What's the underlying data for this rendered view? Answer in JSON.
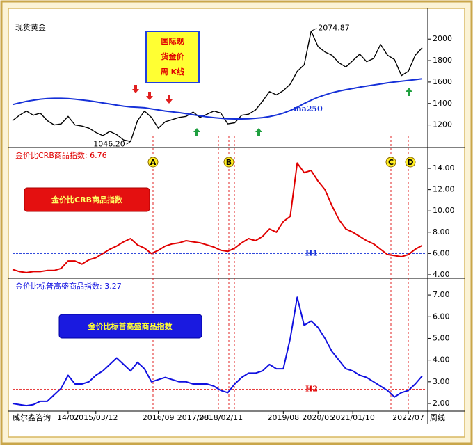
{
  "chart_data": [
    {
      "type": "line",
      "title": "现货黄金",
      "box_lines": [
        "国际现",
        "货金价",
        "周 K线"
      ],
      "ylim": [
        990,
        2170
      ],
      "yticks": [
        1200,
        1400,
        1600,
        1800,
        2000
      ],
      "max_label": "2074.87",
      "min_label": "1046.20",
      "series": [
        {
          "color": "#000000",
          "values": [
            1240,
            1290,
            1330,
            1290,
            1310,
            1240,
            1200,
            1210,
            1280,
            1200,
            1190,
            1170,
            1130,
            1100,
            1140,
            1110,
            1060,
            1046.2,
            1240,
            1330,
            1270,
            1170,
            1230,
            1250,
            1270,
            1280,
            1320,
            1270,
            1300,
            1330,
            1310,
            1210,
            1220,
            1290,
            1300,
            1340,
            1420,
            1510,
            1480,
            1520,
            1580,
            1700,
            1760,
            2074.87,
            1930,
            1880,
            1850,
            1780,
            1740,
            1800,
            1860,
            1790,
            1820,
            1950,
            1850,
            1810,
            1660,
            1700,
            1850,
            1920
          ]
        },
        {
          "name": "ma250",
          "color": "#1530d8",
          "values": [
            1390,
            1405,
            1420,
            1430,
            1440,
            1445,
            1448,
            1448,
            1445,
            1440,
            1432,
            1425,
            1415,
            1405,
            1395,
            1385,
            1375,
            1368,
            1365,
            1360,
            1350,
            1340,
            1330,
            1322,
            1315,
            1305,
            1295,
            1285,
            1275,
            1268,
            1262,
            1258,
            1256,
            1256,
            1258,
            1262,
            1268,
            1278,
            1292,
            1310,
            1335,
            1365,
            1400,
            1430,
            1458,
            1480,
            1500,
            1515,
            1528,
            1540,
            1552,
            1562,
            1572,
            1582,
            1592,
            1600,
            1608,
            1615,
            1622,
            1630
          ]
        }
      ],
      "markers": [
        "A",
        "B",
        "C",
        "D"
      ]
    },
    {
      "type": "line",
      "title": "金价比CRB商品指数: 6.76",
      "box": "金价比CRB商品指数",
      "ylim": [
        3.67,
        15.9
      ],
      "yticks": [
        {
          "value": 4,
          "label": "4.00"
        },
        {
          "value": 6,
          "label": "6.00"
        },
        {
          "value": 8,
          "label": "8.00"
        },
        {
          "value": 10,
          "label": "10.00"
        },
        {
          "value": 12,
          "label": "12.00"
        },
        {
          "value": 14,
          "label": "14.00"
        }
      ],
      "reference": {
        "label": "H1",
        "value": 6,
        "color": "#1530d8"
      },
      "series": [
        {
          "color": "#e00000",
          "values": [
            4.5,
            4.3,
            4.2,
            4.3,
            4.3,
            4.4,
            4.4,
            4.6,
            5.3,
            5.3,
            5.0,
            5.4,
            5.6,
            6.0,
            6.4,
            6.7,
            7.1,
            7.4,
            6.8,
            6.5,
            6.0,
            6.3,
            6.7,
            6.9,
            7.0,
            7.2,
            7.1,
            7.0,
            6.8,
            6.6,
            6.3,
            6.2,
            6.5,
            7.0,
            7.4,
            7.2,
            7.6,
            8.3,
            8.0,
            9.0,
            9.5,
            14.5,
            13.6,
            13.8,
            12.8,
            12.0,
            10.5,
            9.2,
            8.3,
            8.0,
            7.6,
            7.2,
            6.9,
            6.4,
            5.9,
            5.8,
            5.7,
            5.9,
            6.4,
            6.76
          ]
        }
      ]
    },
    {
      "type": "line",
      "title": "金价比标普高盛商品指数: 3.27",
      "box": "金价比标普高盛商品指数",
      "ylim": [
        1.68,
        7.74
      ],
      "yticks": [
        {
          "value": 2,
          "label": "2.00"
        },
        {
          "value": 3,
          "label": "3.00"
        },
        {
          "value": 4,
          "label": "4.00"
        },
        {
          "value": 5,
          "label": "5.00"
        },
        {
          "value": 6,
          "label": "6.00"
        },
        {
          "value": 7,
          "label": "7.00"
        }
      ],
      "reference": {
        "label": "H2",
        "value": 2.65,
        "color": "#e00000"
      },
      "series": [
        {
          "color": "#1010e0",
          "values": [
            2.0,
            1.95,
            1.9,
            1.95,
            2.1,
            2.1,
            2.4,
            2.7,
            3.3,
            2.9,
            2.9,
            3.0,
            3.3,
            3.5,
            3.8,
            4.1,
            3.8,
            3.5,
            3.9,
            3.6,
            3.0,
            3.1,
            3.2,
            3.1,
            3.0,
            3.0,
            2.9,
            2.9,
            2.9,
            2.8,
            2.6,
            2.5,
            2.9,
            3.2,
            3.4,
            3.4,
            3.5,
            3.8,
            3.6,
            3.6,
            5.0,
            6.9,
            5.6,
            5.8,
            5.5,
            5.0,
            4.4,
            4.0,
            3.6,
            3.5,
            3.3,
            3.2,
            3.0,
            2.8,
            2.6,
            2.3,
            2.5,
            2.6,
            2.9,
            3.27
          ]
        }
      ],
      "xlim": [
        0,
        59
      ],
      "xticks": [
        {
          "value": 8,
          "label": "14/07"
        },
        {
          "value": 12,
          "label": "2015/03/12"
        },
        {
          "value": 21,
          "label": "2016/09"
        },
        {
          "value": 26,
          "label": "2017/08"
        },
        {
          "value": 30,
          "label": "2018/02/11"
        },
        {
          "value": 39,
          "label": "2019/08"
        },
        {
          "value": 44,
          "label": "2020/05"
        },
        {
          "value": 49,
          "label": "2021/01/10"
        },
        {
          "value": 57,
          "label": "2022/07"
        }
      ],
      "watermark": "威尔鑫咨询",
      "period_label": "周线"
    }
  ]
}
